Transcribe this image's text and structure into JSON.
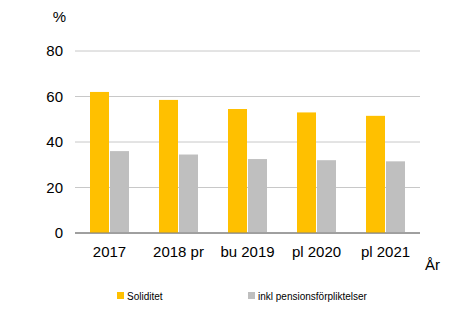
{
  "chart_data": {
    "type": "bar",
    "y_label": "%",
    "x_label": "År",
    "categories": [
      "2017",
      "2018 pr",
      "bu 2019",
      "pl 2020",
      "pl 2021"
    ],
    "series": [
      {
        "name": "Soliditet",
        "color": "#FFC000",
        "values": [
          62,
          58.5,
          54.5,
          53,
          51.5
        ]
      },
      {
        "name": "inkl pensionsförpliktelser",
        "color": "#BFBFBF",
        "values": [
          36,
          34.5,
          32.5,
          32,
          31.5
        ]
      }
    ],
    "ylim": [
      0,
      80
    ],
    "yticks": [
      0,
      20,
      40,
      60,
      80
    ],
    "grid": true,
    "legend": "bottom"
  }
}
